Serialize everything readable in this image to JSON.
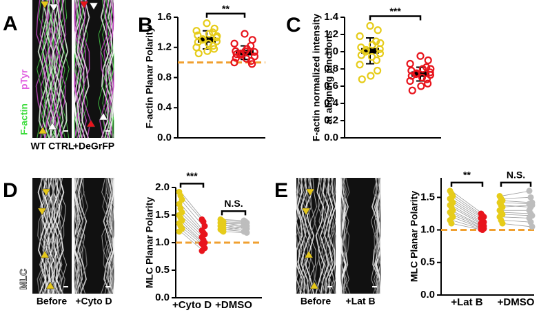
{
  "panel_a": {
    "letter": "A",
    "stains": [
      "F-actin",
      "pTyr"
    ],
    "stain_colors": [
      "#3ddc3d",
      "#e060e0"
    ],
    "image_labels": [
      "WT CTRL",
      "+DeGrFP"
    ]
  },
  "chart_data": [
    {
      "type": "dot",
      "panel_label": "B",
      "ylabel": [
        "F-actin Planar Polarity"
      ],
      "ylim": [
        0,
        1.6
      ],
      "yticks": [
        {
          "value": 0,
          "label": "0.0"
        },
        0.4,
        0.8,
        1.2,
        1.6
      ],
      "reference_line": 1,
      "reference_color": "#f0a030",
      "significance": [
        "**"
      ],
      "groups": [
        {
          "color": "#e6cc1a",
          "mean": 1.3,
          "sd": 0.12,
          "values": [
            1.52,
            1.45,
            1.42,
            1.4,
            1.38,
            1.36,
            1.33,
            1.31,
            1.3,
            1.28,
            1.27,
            1.25,
            1.22,
            1.2,
            1.18,
            1.15,
            1.12,
            1.35
          ]
        },
        {
          "color": "#e8141c",
          "mean": 1.13,
          "sd": 0.09,
          "values": [
            1.38,
            1.3,
            1.25,
            1.22,
            1.18,
            1.15,
            1.14,
            1.12,
            1.1,
            1.08,
            1.06,
            1.05,
            1.02,
            1,
            0.98,
            1.15,
            1.11
          ]
        }
      ]
    },
    {
      "type": "dot",
      "panel_label": "C",
      "ylabel": [
        "F-actin normalized intensity",
        "at aligning junctions"
      ],
      "ylim": [
        0,
        1.4
      ],
      "yticks": [
        {
          "value": 0,
          "label": "0.0"
        },
        0.2,
        0.4,
        0.6,
        0.8,
        {
          "value": 1,
          "label": "1.0"
        },
        1.2,
        1.4
      ],
      "significance": [
        "***"
      ],
      "groups": [
        {
          "color": "#e6cc1a",
          "mean": 1.01,
          "sd": 0.15,
          "values": [
            1.3,
            1.25,
            1.18,
            1.12,
            1.08,
            1.05,
            1.03,
            1.02,
            1,
            0.98,
            0.96,
            0.94,
            0.9,
            0.85,
            0.78,
            0.72,
            0.68,
            1.1
          ]
        },
        {
          "color": "#e8141c",
          "mean": 0.74,
          "sd": 0.08,
          "values": [
            0.95,
            0.9,
            0.86,
            0.82,
            0.8,
            0.78,
            0.76,
            0.75,
            0.74,
            0.73,
            0.72,
            0.7,
            0.68,
            0.66,
            0.63,
            0.6,
            0.55,
            0.8
          ]
        }
      ]
    },
    {
      "type": "paired",
      "panel_label": "D",
      "image_stain": "MLC",
      "image_labels": [
        "Before",
        "+Cyto D"
      ],
      "ylabel": [
        "MLC Planar Polarity"
      ],
      "ylim": [
        0,
        2
      ],
      "yticks": [
        {
          "value": 0,
          "label": "0.0"
        },
        0.5,
        {
          "value": 1,
          "label": "1.0"
        },
        1.5,
        {
          "value": 2,
          "label": "2.0"
        }
      ],
      "reference_line": 1,
      "reference_color": "#f0a030",
      "categories": [
        "+Cyto D",
        "+DMSO"
      ],
      "significance": [
        "***",
        "N.S."
      ],
      "pairs": [
        {
          "before": {
            "color": "#e6cc1a",
            "values": [
              1.92,
              1.85,
              1.78,
              1.7,
              1.62,
              1.55,
              1.5,
              1.45,
              1.4,
              1.35,
              1.3,
              1.25,
              1.2
            ]
          },
          "after": {
            "color": "#e8141c",
            "values": [
              1.42,
              1.38,
              1.3,
              1.22,
              1.18,
              1.15,
              1.1,
              1.05,
              1,
              0.98,
              0.95,
              0.9,
              0.85
            ]
          }
        },
        {
          "before": {
            "color": "#e6cc1a",
            "values": [
              1.42,
              1.4,
              1.38,
              1.36,
              1.34,
              1.32,
              1.3,
              1.28,
              1.26,
              1.24,
              1.22,
              1.2
            ]
          },
          "after": {
            "color": "#bdbdbd",
            "values": [
              1.4,
              1.38,
              1.36,
              1.3,
              1.35,
              1.25,
              1.32,
              1.22,
              1.3,
              1.2,
              1.28,
              1.18
            ]
          }
        }
      ]
    },
    {
      "type": "paired",
      "panel_label": "E",
      "image_labels": [
        "Before",
        "+Lat B"
      ],
      "ylabel": [
        "MLC Planar Polarity"
      ],
      "ylim": [
        0,
        1.8
      ],
      "yticks": [
        {
          "value": 0,
          "label": "0.0"
        },
        0.5,
        {
          "value": 1,
          "label": "1.0"
        },
        1.5
      ],
      "reference_line": 1,
      "reference_color": "#f0a030",
      "categories": [
        "+Lat B",
        "+DMSO"
      ],
      "significance": [
        "**",
        "N.S."
      ],
      "pairs": [
        {
          "before": {
            "color": "#e6cc1a",
            "values": [
              1.6,
              1.56,
              1.52,
              1.48,
              1.45,
              1.42,
              1.38,
              1.35,
              1.3,
              1.27,
              1.24,
              1.2,
              1.15,
              1.1
            ]
          },
          "after": {
            "color": "#e8141c",
            "values": [
              1.25,
              1.22,
              1.2,
              1.18,
              1.15,
              1.12,
              1.1,
              1.08,
              1.06,
              1.05,
              1.03,
              1.02,
              1.01,
              1
            ]
          }
        },
        {
          "before": {
            "color": "#e6cc1a",
            "values": [
              1.52,
              1.48,
              1.45,
              1.42,
              1.38,
              1.35,
              1.3,
              1.27,
              1.24,
              1.2,
              1.15,
              1.1
            ]
          },
          "after": {
            "color": "#bdbdbd",
            "values": [
              1.6,
              1.5,
              1.42,
              1.4,
              1.35,
              1.38,
              1.3,
              1.25,
              1.22,
              1.18,
              1.12,
              1.05
            ]
          }
        }
      ]
    }
  ]
}
